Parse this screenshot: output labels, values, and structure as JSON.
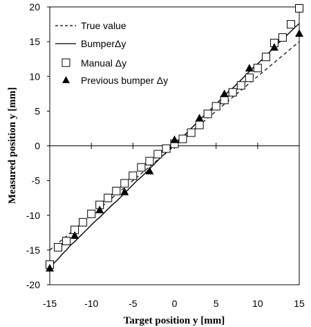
{
  "chart_data": {
    "type": "scatter",
    "xlabel": "Target position y [mm]",
    "ylabel": "Measured position y [mm]",
    "xlim": [
      -15,
      15
    ],
    "ylim": [
      -20,
      20
    ],
    "xticks": [
      "-15",
      "-10",
      "-5",
      "0",
      "5",
      "10",
      "15"
    ],
    "yticks": [
      "-20",
      "-15",
      "-10",
      "-5",
      "0",
      "5",
      "10",
      "15",
      "20"
    ],
    "grid": false,
    "legend_position": "top-left",
    "series": [
      {
        "name": "True value",
        "style": "dashed-line",
        "x": [
          -15,
          15
        ],
        "y": [
          -15,
          15
        ]
      },
      {
        "name": "BumperΔy",
        "style": "solid-line",
        "x": [
          -15,
          -14.5,
          -14,
          -13.5,
          -13,
          -12.5,
          -12,
          -11.5,
          -11,
          -10.5,
          -10,
          -9.5,
          -9,
          -8.5,
          -8,
          -7.5,
          -7,
          -6.5,
          -6,
          -5.5,
          -5,
          -4.5,
          -4,
          -3.5,
          -3,
          -2.5,
          -2,
          -1.5,
          -1,
          -0.5,
          0,
          0.5,
          1,
          1.5,
          2,
          2.5,
          3,
          3.5,
          4,
          4.5,
          5,
          5.5,
          6,
          6.5,
          7,
          7.5,
          8,
          8.5,
          9,
          9.5,
          10,
          10.5,
          11,
          11.5,
          12,
          12.5,
          13,
          13.5,
          14,
          14.5,
          15
        ],
        "y": [
          -17.5,
          -16.9,
          -16.3,
          -15.6,
          -15.0,
          -14.3,
          -13.8,
          -13.2,
          -12.6,
          -12.0,
          -11.4,
          -10.8,
          -10.3,
          -9.7,
          -9.1,
          -8.5,
          -8.0,
          -7.4,
          -6.8,
          -6.2,
          -5.6,
          -5.0,
          -4.5,
          -3.9,
          -3.3,
          -2.7,
          -2.1,
          -1.5,
          -1.0,
          -0.4,
          0.2,
          0.8,
          1.3,
          1.9,
          2.5,
          3.1,
          3.7,
          4.3,
          4.8,
          5.4,
          6.0,
          6.6,
          7.2,
          7.8,
          8.3,
          8.9,
          9.5,
          10.1,
          10.7,
          11.3,
          11.8,
          12.4,
          13.0,
          13.6,
          14.2,
          14.8,
          15.3,
          15.9,
          16.5,
          17.1,
          17.6
        ]
      },
      {
        "name": "Manual Δy",
        "style": "open-square",
        "x": [
          -15,
          -14,
          -13,
          -12,
          -11,
          -10,
          -9,
          -8,
          -7,
          -6,
          -5,
          -4,
          -3,
          -2,
          -1,
          0,
          1,
          2,
          3,
          4,
          5,
          6,
          7,
          8,
          9,
          10,
          11,
          12,
          13,
          14,
          15
        ],
        "y": [
          -17.1,
          -14.6,
          -13.7,
          -12.1,
          -11.0,
          -9.8,
          -8.5,
          -7.5,
          -6.5,
          -5.4,
          -4.3,
          -3.1,
          -2.2,
          -1.2,
          -0.4,
          0.3,
          1.0,
          1.9,
          3.0,
          4.6,
          5.7,
          6.6,
          7.7,
          8.7,
          9.8,
          11.2,
          12.8,
          14.8,
          15.6,
          17.5,
          19.8
        ]
      },
      {
        "name": "Previous bumper Δy",
        "style": "filled-triangle",
        "x": [
          -15,
          -12,
          -9,
          -6,
          -3,
          0,
          3,
          6,
          9,
          12,
          15
        ],
        "y": [
          -17.6,
          -12.9,
          -9.2,
          -6.6,
          -3.6,
          0.9,
          4.0,
          7.5,
          11.2,
          14.2,
          16.2
        ]
      }
    ]
  }
}
